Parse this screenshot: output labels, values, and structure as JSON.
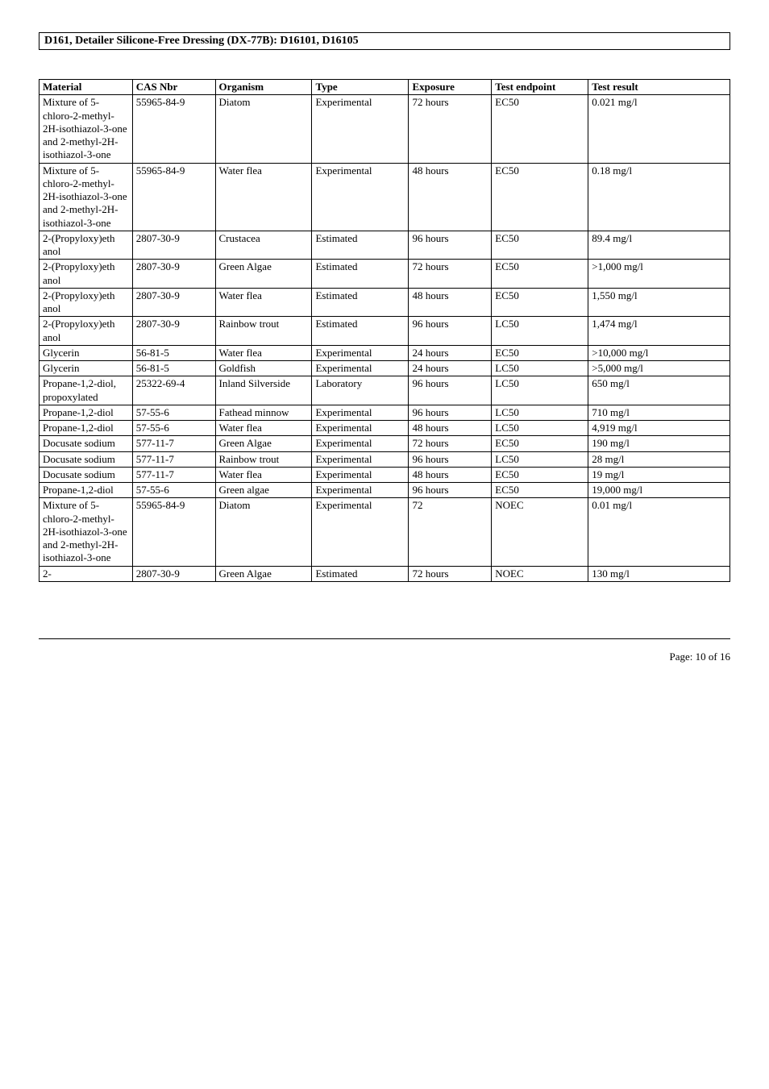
{
  "header": {
    "product_title": "D161, Detailer Silicone-Free Dressing (DX-77B): D16101, D16105"
  },
  "table": {
    "columns": [
      "Material",
      "CAS Nbr",
      "Organism",
      "Type",
      "Exposure",
      "Test endpoint",
      "Test result"
    ],
    "rows": [
      [
        "Mixture of 5-chloro-2-methyl-2H-isothiazol-3-one and 2-methyl-2H-isothiazol-3-one",
        "55965-84-9",
        "Diatom",
        "Experimental",
        "72 hours",
        "EC50",
        "0.021 mg/l"
      ],
      [
        "Mixture of 5-chloro-2-methyl-2H-isothiazol-3-one and 2-methyl-2H-isothiazol-3-one",
        "55965-84-9",
        "Water flea",
        "Experimental",
        "48 hours",
        "EC50",
        "0.18 mg/l"
      ],
      [
        "2-(Propyloxy)eth anol",
        "2807-30-9",
        "Crustacea",
        "Estimated",
        "96 hours",
        "EC50",
        "89.4 mg/l"
      ],
      [
        "2-(Propyloxy)eth anol",
        "2807-30-9",
        "Green Algae",
        "Estimated",
        "72 hours",
        "EC50",
        ">1,000 mg/l"
      ],
      [
        "2-(Propyloxy)eth anol",
        "2807-30-9",
        "Water flea",
        "Estimated",
        "48 hours",
        "EC50",
        "1,550 mg/l"
      ],
      [
        "2-(Propyloxy)eth anol",
        "2807-30-9",
        "Rainbow trout",
        "Estimated",
        "96 hours",
        "LC50",
        "1,474 mg/l"
      ],
      [
        "Glycerin",
        "56-81-5",
        "Water flea",
        "Experimental",
        "24 hours",
        "EC50",
        ">10,000 mg/l"
      ],
      [
        "Glycerin",
        "56-81-5",
        "Goldfish",
        "Experimental",
        "24 hours",
        "LC50",
        ">5,000 mg/l"
      ],
      [
        "Propane-1,2-diol, propoxylated",
        "25322-69-4",
        "Inland Silverside",
        "Laboratory",
        "96 hours",
        "LC50",
        "650 mg/l"
      ],
      [
        "Propane-1,2-diol",
        "57-55-6",
        "Fathead minnow",
        "Experimental",
        "96 hours",
        "LC50",
        "710 mg/l"
      ],
      [
        "Propane-1,2-diol",
        "57-55-6",
        "Water flea",
        "Experimental",
        "48 hours",
        "LC50",
        "4,919 mg/l"
      ],
      [
        "Docusate sodium",
        "577-11-7",
        "Green Algae",
        "Experimental",
        "72 hours",
        "EC50",
        "190 mg/l"
      ],
      [
        "Docusate sodium",
        "577-11-7",
        "Rainbow trout",
        "Experimental",
        "96 hours",
        "LC50",
        "28 mg/l"
      ],
      [
        "Docusate sodium",
        "577-11-7",
        "Water flea",
        "Experimental",
        "48 hours",
        "EC50",
        "19 mg/l"
      ],
      [
        "Propane-1,2-diol",
        "57-55-6",
        "Green algae",
        "Experimental",
        "96 hours",
        "EC50",
        "19,000 mg/l"
      ],
      [
        "Mixture of 5-chloro-2-methyl-2H-isothiazol-3-one and 2-methyl-2H-isothiazol-3-one",
        "55965-84-9",
        "Diatom",
        "Experimental",
        "72",
        "NOEC",
        "0.01 mg/l"
      ],
      [
        "2-",
        "2807-30-9",
        "Green Algae",
        "Estimated",
        "72 hours",
        "NOEC",
        "130 mg/l"
      ]
    ]
  },
  "footer": {
    "page_label": "Page: 10 of  16"
  }
}
